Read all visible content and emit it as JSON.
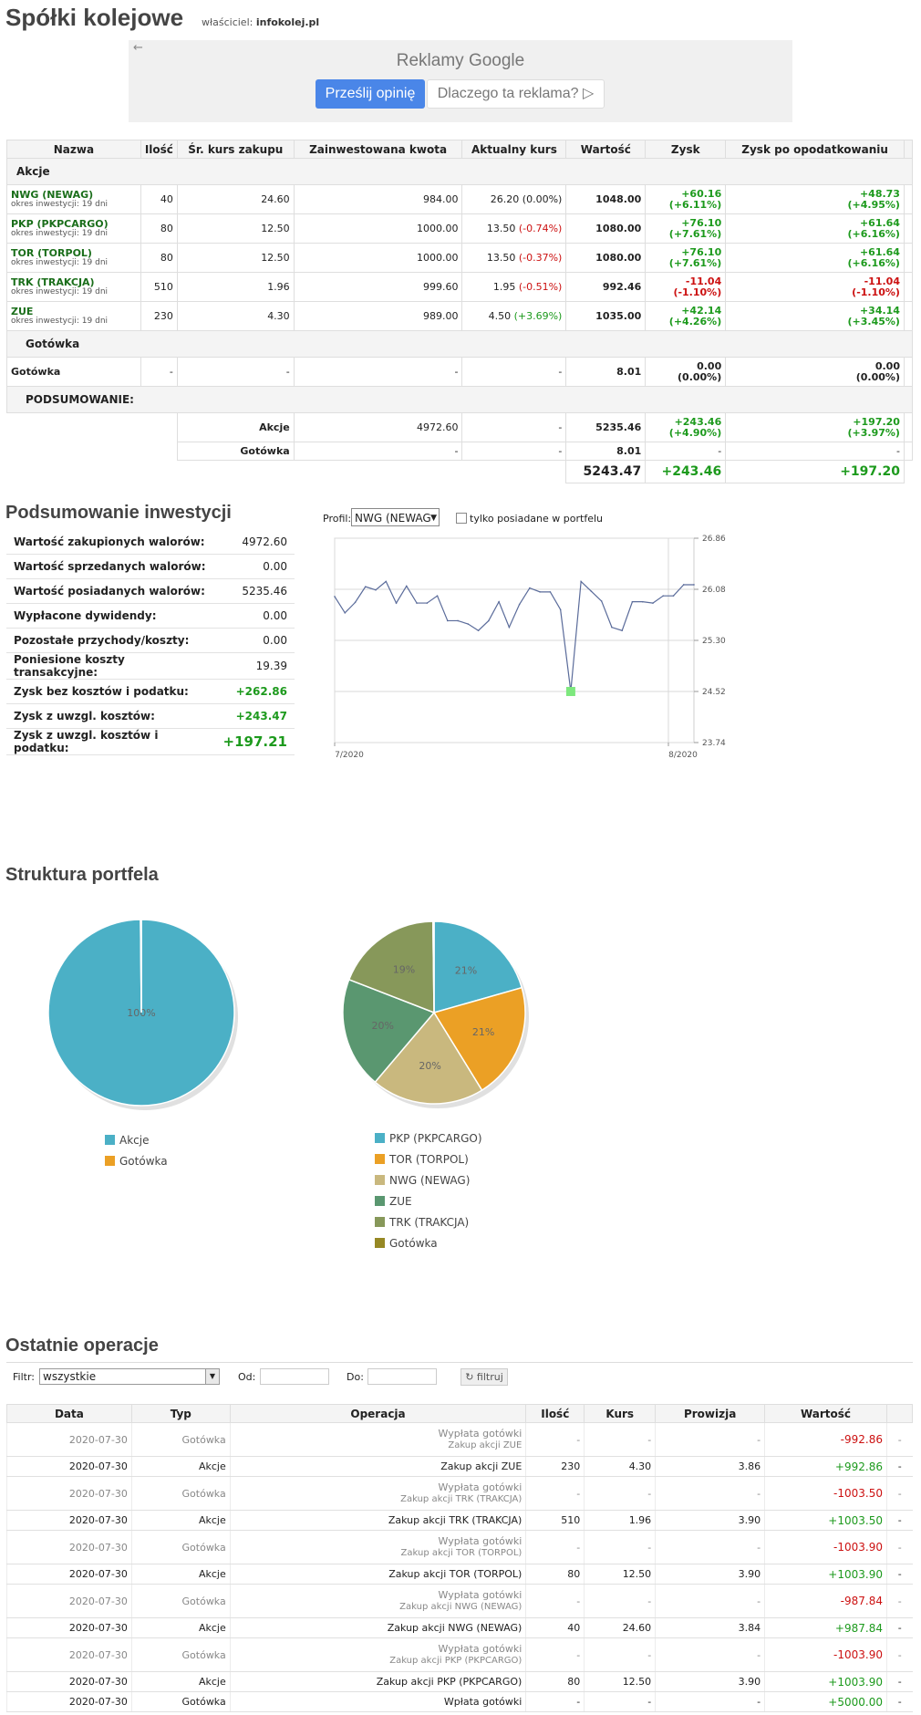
{
  "header": {
    "title": "Spółki kolejowe",
    "owner_prefix": "właściciel:",
    "owner": "infokolej.pl"
  },
  "ad": {
    "back_icon": "←",
    "label": "Reklamy Google",
    "btn_feedback": "Prześlij opinię",
    "btn_why": "Dlaczego ta reklama? ▷"
  },
  "portfolio": {
    "headers": [
      "Nazwa",
      "Ilość",
      "Śr. kurs zakupu",
      "Zainwestowana kwota",
      "Aktualny kurs",
      "Wartość",
      "Zysk",
      "Zysk po opodatkowaniu"
    ],
    "section_stocks": "Akcje",
    "rows": [
      {
        "name": "NWG (NEWAG)",
        "period": "okres inwestycji: 19 dni",
        "qty": "40",
        "avg": "24.60",
        "invested": "984.00",
        "price": "26.20",
        "change": "(0.00%)",
        "change_color": "#222222",
        "value": "1048.00",
        "profit": "+60.16",
        "profit_pct": "(+6.11%)",
        "profit_color": "#1d9a1d",
        "net": "+48.73",
        "net_pct": "(+4.95%)"
      },
      {
        "name": "PKP (PKPCARGO)",
        "period": "okres inwestycji: 19 dni",
        "qty": "80",
        "avg": "12.50",
        "invested": "1000.00",
        "price": "13.50",
        "change": "(-0.74%)",
        "change_color": "#cc1111",
        "value": "1080.00",
        "profit": "+76.10",
        "profit_pct": "(+7.61%)",
        "profit_color": "#1d9a1d",
        "net": "+61.64",
        "net_pct": "(+6.16%)"
      },
      {
        "name": "TOR (TORPOL)",
        "period": "okres inwestycji: 19 dni",
        "qty": "80",
        "avg": "12.50",
        "invested": "1000.00",
        "price": "13.50",
        "change": "(-0.37%)",
        "change_color": "#cc1111",
        "value": "1080.00",
        "profit": "+76.10",
        "profit_pct": "(+7.61%)",
        "profit_color": "#1d9a1d",
        "net": "+61.64",
        "net_pct": "(+6.16%)"
      },
      {
        "name": "TRK (TRAKCJA)",
        "period": "okres inwestycji: 19 dni",
        "qty": "510",
        "avg": "1.96",
        "invested": "999.60",
        "price": "1.95",
        "change": "(-0.51%)",
        "change_color": "#cc1111",
        "value": "992.46",
        "profit": "-11.04",
        "profit_pct": "(-1.10%)",
        "profit_color": "#cc1111",
        "net": "-11.04",
        "net_pct": "(-1.10%)"
      },
      {
        "name": "ZUE",
        "period": "okres inwestycji: 19 dni",
        "qty": "230",
        "avg": "4.30",
        "invested": "989.00",
        "price": "4.50",
        "change": "(+3.69%)",
        "change_color": "#1d9a1d",
        "value": "1035.00",
        "profit": "+42.14",
        "profit_pct": "(+4.26%)",
        "profit_color": "#1d9a1d",
        "net": "+34.14",
        "net_pct": "(+3.45%)"
      }
    ],
    "section_cash": "Gotówka",
    "cash_row": {
      "name": "Gotówka",
      "qty": "-",
      "avg": "-",
      "invested": "-",
      "price": "-",
      "value": "8.01",
      "profit": "0.00",
      "profit_pct": "(0.00%)",
      "net": "0.00",
      "net_pct": "(0.00%)"
    },
    "section_summary": "PODSUMOWANIE:",
    "summary_stocks": {
      "label": "Akcje",
      "invested": "4972.60",
      "price": "-",
      "value": "5235.46",
      "profit": "+243.46",
      "profit_pct": "(+4.90%)",
      "net": "+197.20",
      "net_pct": "(+3.97%)"
    },
    "summary_cash": {
      "label": "Gotówka",
      "invested": "-",
      "price": "-",
      "value": "8.01",
      "profit": "-",
      "net": "-"
    },
    "totals": {
      "value": "5243.47",
      "profit": "+243.46",
      "net": "+197.20"
    }
  },
  "summary": {
    "title": "Podsumowanie inwestycji",
    "rows": [
      {
        "label": "Wartość zakupionych walorów:",
        "value": "4972.60"
      },
      {
        "label": "Wartość sprzedanych walorów:",
        "value": "0.00"
      },
      {
        "label": "Wartość posiadanych walorów:",
        "value": "5235.46"
      },
      {
        "label": "Wypłacone dywidendy:",
        "value": "0.00"
      },
      {
        "label": "Pozostałe przychody/koszty:",
        "value": "0.00"
      },
      {
        "label": "Poniesione koszty transakcyjne:",
        "value": "19.39"
      },
      {
        "label": "Zysk bez kosztów i podatku:",
        "value": "+262.86"
      },
      {
        "label": "Zysk z uwzgl. kosztów:",
        "value": "+243.47"
      },
      {
        "label": "Zysk z uwzgl. kosztów i podatku:",
        "value": "+197.21"
      }
    ]
  },
  "chart_controls": {
    "profil_label": "Profil:",
    "profil_value": "NWG (NEWAG",
    "profil_arrow": "▼",
    "checkbox_label": "tylko posiadane w portfelu"
  },
  "chart_data": [
    {
      "type": "line",
      "series": [
        {
          "values": [
            25.97,
            25.72,
            25.88,
            26.12,
            26.07,
            26.2,
            25.87,
            26.13,
            25.87,
            25.87,
            25.98,
            25.6,
            25.6,
            25.55,
            25.45,
            25.6,
            25.89,
            25.5,
            25.85,
            26.1,
            26.04,
            26.04,
            25.77,
            24.52,
            26.2,
            26.05,
            25.9,
            25.5,
            25.45,
            25.89,
            25.89,
            25.87,
            25.98,
            25.98,
            26.15,
            26.15
          ]
        }
      ],
      "x_ticks": [
        "7/2020",
        "8/2020"
      ],
      "y_ticks": [
        "26.86",
        "26.08",
        "25.30",
        "24.52",
        "23.74"
      ],
      "ylim": [
        23.74,
        26.86
      ],
      "highlight_index": 23,
      "grid": true
    },
    {
      "type": "pie",
      "labels": [
        "Akcje",
        "Gotówka"
      ],
      "values": [
        99.85,
        0.15
      ],
      "slice_labels": [
        "100%",
        ""
      ],
      "colors": [
        "#4bb0c6",
        "#eba025"
      ]
    },
    {
      "type": "pie",
      "labels": [
        "PKP (PKPCARGO)",
        "TOR (TORPOL)",
        "NWG (NEWAG)",
        "ZUE",
        "TRK (TRAKCJA)",
        "Gotówka"
      ],
      "values": [
        20.6,
        20.6,
        20.0,
        19.7,
        18.9,
        0.2
      ],
      "slice_labels": [
        "21%",
        "21%",
        "20%",
        "20%",
        "19%",
        ""
      ],
      "colors": [
        "#4bb0c6",
        "#eba025",
        "#c9b87e",
        "#5a9770",
        "#87985a",
        "#968824"
      ]
    }
  ],
  "structure": {
    "title": "Struktura portfela"
  },
  "operations": {
    "title": "Ostatnie operacje",
    "filtr_label": "Filtr:",
    "filtr_value": "wszystkie",
    "filtr_arrow": "▼",
    "od_label": "Od:",
    "do_label": "Do:",
    "filter_btn": "↻ filtruj",
    "headers": [
      "Data",
      "Typ",
      "Operacja",
      "Ilość",
      "Kurs",
      "Prowizja",
      "Wartość"
    ],
    "rows": [
      {
        "date": "2020-07-30",
        "type": "Gotówka",
        "op1": "Wypłata gotówki",
        "op2": "Zakup akcji ZUE",
        "qty": "-",
        "price": "-",
        "fee": "-",
        "value": "-992.86",
        "color": "#cc1111",
        "kind": "cash"
      },
      {
        "date": "2020-07-30",
        "type": "Akcje",
        "op1": "Zakup akcji ZUE",
        "op2": "",
        "qty": "230",
        "price": "4.30",
        "fee": "3.86",
        "value": "+992.86",
        "color": "#1d9a1d",
        "kind": "stock"
      },
      {
        "date": "2020-07-30",
        "type": "Gotówka",
        "op1": "Wypłata gotówki",
        "op2": "Zakup akcji TRK (TRAKCJA)",
        "qty": "-",
        "price": "-",
        "fee": "-",
        "value": "-1003.50",
        "color": "#cc1111",
        "kind": "cash"
      },
      {
        "date": "2020-07-30",
        "type": "Akcje",
        "op1": "Zakup akcji TRK (TRAKCJA)",
        "op2": "",
        "qty": "510",
        "price": "1.96",
        "fee": "3.90",
        "value": "+1003.50",
        "color": "#1d9a1d",
        "kind": "stock"
      },
      {
        "date": "2020-07-30",
        "type": "Gotówka",
        "op1": "Wypłata gotówki",
        "op2": "Zakup akcji TOR (TORPOL)",
        "qty": "-",
        "price": "-",
        "fee": "-",
        "value": "-1003.90",
        "color": "#cc1111",
        "kind": "cash"
      },
      {
        "date": "2020-07-30",
        "type": "Akcje",
        "op1": "Zakup akcji TOR (TORPOL)",
        "op2": "",
        "qty": "80",
        "price": "12.50",
        "fee": "3.90",
        "value": "+1003.90",
        "color": "#1d9a1d",
        "kind": "stock"
      },
      {
        "date": "2020-07-30",
        "type": "Gotówka",
        "op1": "Wypłata gotówki",
        "op2": "Zakup akcji NWG (NEWAG)",
        "qty": "-",
        "price": "-",
        "fee": "-",
        "value": "-987.84",
        "color": "#cc1111",
        "kind": "cash"
      },
      {
        "date": "2020-07-30",
        "type": "Akcje",
        "op1": "Zakup akcji NWG (NEWAG)",
        "op2": "",
        "qty": "40",
        "price": "24.60",
        "fee": "3.84",
        "value": "+987.84",
        "color": "#1d9a1d",
        "kind": "stock"
      },
      {
        "date": "2020-07-30",
        "type": "Gotówka",
        "op1": "Wypłata gotówki",
        "op2": "Zakup akcji PKP (PKPCARGO)",
        "qty": "-",
        "price": "-",
        "fee": "-",
        "value": "-1003.90",
        "color": "#cc1111",
        "kind": "cash"
      },
      {
        "date": "2020-07-30",
        "type": "Akcje",
        "op1": "Zakup akcji PKP (PKPCARGO)",
        "op2": "",
        "qty": "80",
        "price": "12.50",
        "fee": "3.90",
        "value": "+1003.90",
        "color": "#1d9a1d",
        "kind": "stock"
      },
      {
        "date": "2020-07-30",
        "type": "Gotówka",
        "op1": "Wpłata gotówki",
        "op2": "",
        "qty": "-",
        "price": "-",
        "fee": "-",
        "value": "+5000.00",
        "color": "#1d9a1d",
        "kind": "cash1"
      }
    ]
  }
}
